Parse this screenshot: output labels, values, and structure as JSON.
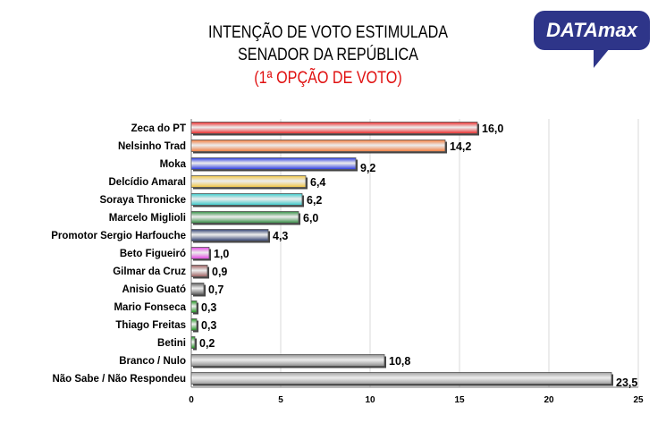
{
  "logo_text": "DATAmax",
  "chart_data": {
    "type": "bar",
    "orientation": "horizontal",
    "title": [
      "INTENÇÃO DE VOTO ESTIMULADA",
      "SENADOR DA REPÚBLICA"
    ],
    "subtitle": "(1ª OPÇÃO DE VOTO)",
    "categories": [
      "Zeca do PT",
      "Nelsinho Trad",
      "Moka",
      "Delcídio Amaral",
      "Soraya Thronicke",
      "Marcelo Miglioli",
      "Promotor Sergio Harfouche",
      "Beto Figueiró",
      "Gilmar da Cruz",
      "Anisio Guató",
      "Mario Fonseca",
      "Thiago Freitas",
      "Betini",
      "Branco / Nulo",
      "Não Sabe / Não Respondeu"
    ],
    "values": [
      16.0,
      14.2,
      9.2,
      6.4,
      6.2,
      6.0,
      4.3,
      1.0,
      0.9,
      0.7,
      0.3,
      0.3,
      0.2,
      10.8,
      23.5
    ],
    "value_labels": [
      "16,0",
      "14,2",
      "9,2",
      "6,4",
      "6,2",
      "6,0",
      "4,3",
      "1,0",
      "0,9",
      "0,7",
      "0,3",
      "0,3",
      "0,2",
      "10,8",
      "23,5"
    ],
    "colors": [
      "#e82424",
      "#f07838",
      "#2434e0",
      "#f0c43c",
      "#34c8c8",
      "#2e8a3e",
      "#2c3c6c",
      "#e040e0",
      "#985858",
      "#585858",
      "#189418",
      "#189418",
      "#189418",
      "#8c8c8c",
      "#9c9c9c"
    ],
    "xlim": [
      0,
      25
    ],
    "xticks": [
      0,
      5,
      10,
      15,
      20,
      25
    ],
    "xtick_labels": [
      "0",
      "5",
      "10",
      "15",
      "20",
      "25"
    ],
    "grid": true,
    "xlabel": "",
    "ylabel": ""
  }
}
